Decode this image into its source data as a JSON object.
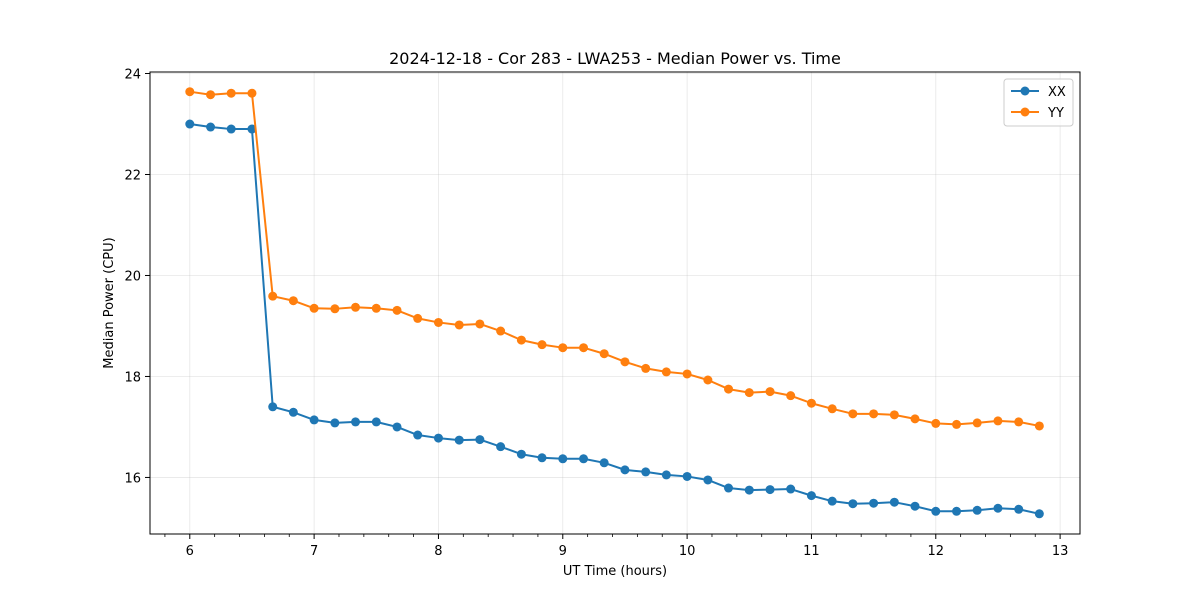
{
  "chart_data": {
    "type": "line",
    "title": "2024-12-18 - Cor 283 - LWA253 - Median Power vs. Time",
    "xlabel": "UT Time (hours)",
    "ylabel": "Median Power (CPU)",
    "xlim": [
      5.68,
      13.16
    ],
    "ylim": [
      14.88,
      24.03
    ],
    "xticks": [
      6,
      7,
      8,
      9,
      10,
      11,
      12,
      13
    ],
    "yticks": [
      16,
      18,
      20,
      22,
      24
    ],
    "grid": true,
    "legend_position": "top-right",
    "x": [
      6.0,
      6.167,
      6.333,
      6.5,
      6.667,
      6.833,
      7.0,
      7.167,
      7.333,
      7.5,
      7.667,
      7.833,
      8.0,
      8.167,
      8.333,
      8.5,
      8.667,
      8.833,
      9.0,
      9.167,
      9.333,
      9.5,
      9.667,
      9.833,
      10.0,
      10.167,
      10.333,
      10.5,
      10.667,
      10.833,
      11.0,
      11.167,
      11.333,
      11.5,
      11.667,
      11.833,
      12.0,
      12.167,
      12.333,
      12.5,
      12.667,
      12.833
    ],
    "series": [
      {
        "name": "XX",
        "color": "#1f77b4",
        "values": [
          23.0,
          22.94,
          22.9,
          22.9,
          17.4,
          17.29,
          17.14,
          17.08,
          17.1,
          17.1,
          17.0,
          16.84,
          16.78,
          16.74,
          16.75,
          16.61,
          16.46,
          16.39,
          16.37,
          16.37,
          16.29,
          16.15,
          16.11,
          16.05,
          16.02,
          15.95,
          15.79,
          15.75,
          15.76,
          15.77,
          15.64,
          15.53,
          15.48,
          15.49,
          15.51,
          15.43,
          15.33,
          15.33,
          15.35,
          15.39,
          15.37,
          15.28
        ]
      },
      {
        "name": "YY",
        "color": "#ff7f0e",
        "values": [
          23.64,
          23.58,
          23.61,
          23.61,
          19.59,
          19.5,
          19.35,
          19.34,
          19.37,
          19.35,
          19.31,
          19.15,
          19.07,
          19.02,
          19.04,
          18.9,
          18.72,
          18.63,
          18.57,
          18.57,
          18.45,
          18.29,
          18.16,
          18.09,
          18.05,
          17.93,
          17.75,
          17.68,
          17.7,
          17.62,
          17.47,
          17.36,
          17.26,
          17.26,
          17.24,
          17.16,
          17.07,
          17.05,
          17.08,
          17.12,
          17.1,
          17.02
        ]
      }
    ]
  }
}
